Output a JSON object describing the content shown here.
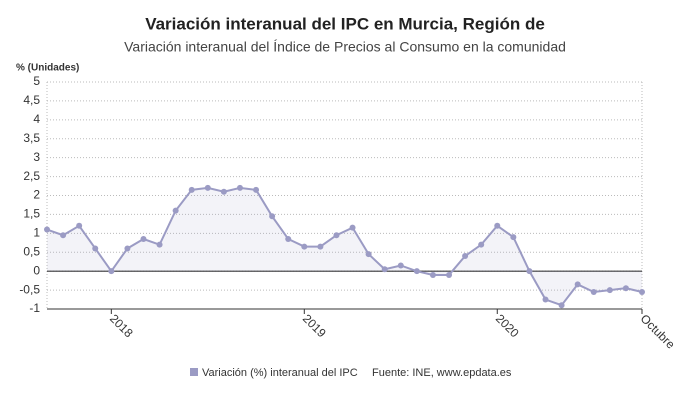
{
  "chart_data": {
    "type": "line",
    "title": "Variación interanual del IPC en Murcia, Región de",
    "subtitle": "Variación interanual del Índice de Precios al Consumo en la comunidad",
    "y_label": "% (Unidades)",
    "source": "Fuente: INE, www.epdata.es",
    "categories": [
      null,
      null,
      null,
      null,
      "2018",
      null,
      null,
      null,
      null,
      null,
      null,
      null,
      null,
      null,
      null,
      null,
      "2019",
      null,
      null,
      null,
      null,
      null,
      null,
      null,
      null,
      null,
      null,
      null,
      "2020",
      null,
      null,
      null,
      null,
      null,
      null,
      null,
      null,
      "Octubre"
    ],
    "series": [
      {
        "name": "Variación (%) interanual del IPC",
        "color": "#9b9bc4",
        "values": [
          1.1,
          0.95,
          1.2,
          0.6,
          0.0,
          0.6,
          0.85,
          0.7,
          1.6,
          2.15,
          2.2,
          2.1,
          2.2,
          2.15,
          1.45,
          0.85,
          0.65,
          0.65,
          0.95,
          1.15,
          0.45,
          0.05,
          0.15,
          0.0,
          -0.1,
          -0.1,
          0.4,
          0.7,
          1.2,
          0.9,
          0.0,
          -0.75,
          -0.9,
          -0.35,
          -0.55,
          -0.5,
          -0.45,
          -0.55
        ]
      }
    ],
    "ylim": [
      -1,
      5
    ],
    "yticks": [
      -1,
      {
        "value": -0.5,
        "label": "-0,5"
      },
      0,
      {
        "value": 0.5,
        "label": "0,5"
      },
      1,
      {
        "value": 1.5,
        "label": "1,5"
      },
      2,
      {
        "value": 2.5,
        "label": "2,5"
      },
      3,
      {
        "value": 3.5,
        "label": "3,5"
      },
      4,
      {
        "value": 4.5,
        "label": "4,5"
      },
      5
    ],
    "grid": true
  }
}
